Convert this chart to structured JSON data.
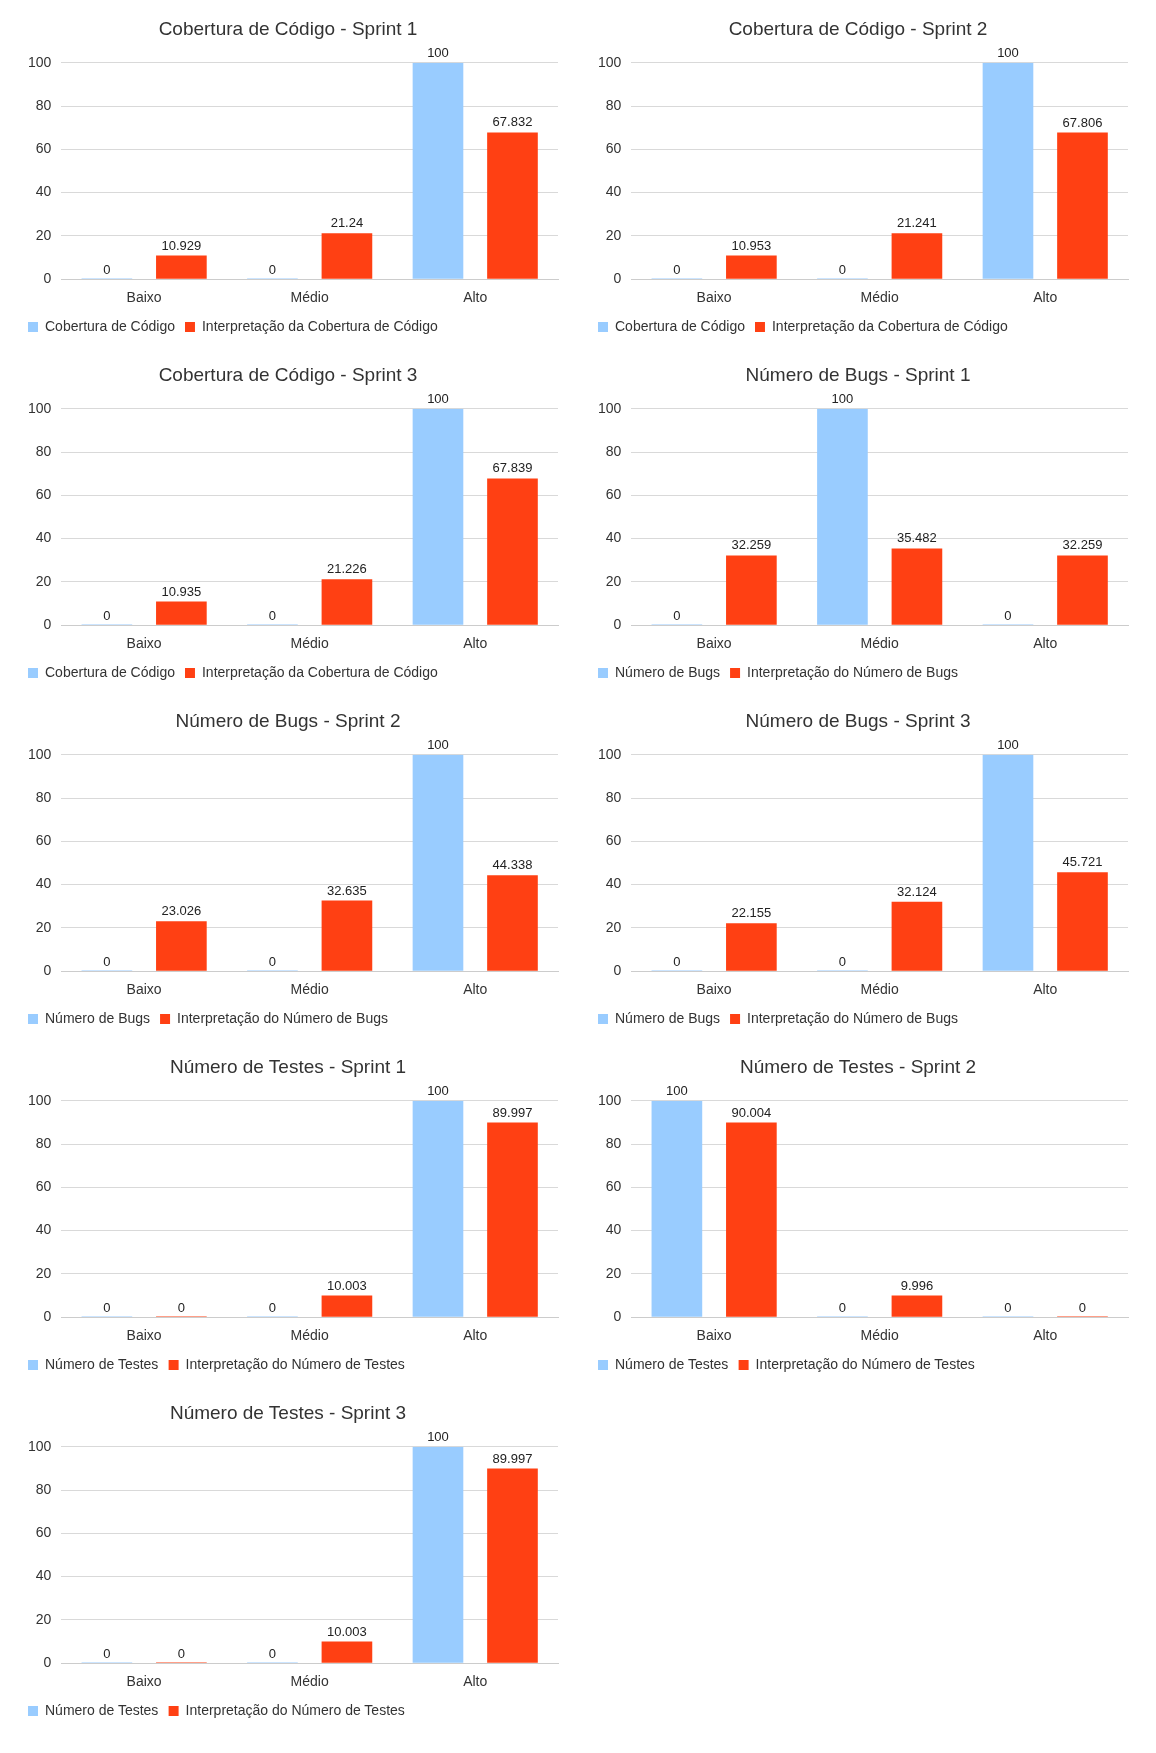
{
  "chart_data": [
    {
      "type": "bar",
      "title": "Cobertura de Código - Sprint 1",
      "categories": [
        "Baixo",
        "Médio",
        "Alto"
      ],
      "series": [
        {
          "name": "Cobertura de Código",
          "color": "#99ccff",
          "values": [
            0,
            0,
            100
          ]
        },
        {
          "name": "Interpretação da Cobertura de Código",
          "color": "#ff4013",
          "values": [
            10.929,
            21.24,
            67.832
          ]
        }
      ],
      "ylim": [
        0,
        100
      ],
      "yticks": [
        0,
        20,
        40,
        60,
        80,
        100
      ],
      "grid": "y",
      "legend": "bottom",
      "data_labels": true
    },
    {
      "type": "bar",
      "title": "Cobertura de Código - Sprint 2",
      "categories": [
        "Baixo",
        "Médio",
        "Alto"
      ],
      "series": [
        {
          "name": "Cobertura de Código",
          "color": "#99ccff",
          "values": [
            0,
            0,
            100
          ]
        },
        {
          "name": "Interpretação da Cobertura de Código",
          "color": "#ff4013",
          "values": [
            10.953,
            21.241,
            67.806
          ]
        }
      ],
      "ylim": [
        0,
        100
      ],
      "yticks": [
        0,
        20,
        40,
        60,
        80,
        100
      ],
      "grid": "y",
      "legend": "bottom",
      "data_labels": true
    },
    {
      "type": "bar",
      "title": "Cobertura de Código - Sprint 3",
      "categories": [
        "Baixo",
        "Médio",
        "Alto"
      ],
      "series": [
        {
          "name": "Cobertura de Código",
          "color": "#99ccff",
          "values": [
            0,
            0,
            100
          ]
        },
        {
          "name": "Interpretação da Cobertura de Código",
          "color": "#ff4013",
          "values": [
            10.935,
            21.226,
            67.839
          ]
        }
      ],
      "ylim": [
        0,
        100
      ],
      "yticks": [
        0,
        20,
        40,
        60,
        80,
        100
      ],
      "grid": "y",
      "legend": "bottom",
      "data_labels": true
    },
    {
      "type": "bar",
      "title": "Número de Bugs - Sprint 1",
      "categories": [
        "Baixo",
        "Médio",
        "Alto"
      ],
      "series": [
        {
          "name": "Número de Bugs",
          "color": "#99ccff",
          "values": [
            0,
            100,
            0
          ]
        },
        {
          "name": "Interpretação do Número de Bugs",
          "color": "#ff4013",
          "values": [
            32.259,
            35.482,
            32.259
          ]
        }
      ],
      "ylim": [
        0,
        100
      ],
      "yticks": [
        0,
        20,
        40,
        60,
        80,
        100
      ],
      "grid": "y",
      "legend": "bottom",
      "data_labels": true
    },
    {
      "type": "bar",
      "title": "Número de Bugs - Sprint 2",
      "categories": [
        "Baixo",
        "Médio",
        "Alto"
      ],
      "series": [
        {
          "name": "Número de Bugs",
          "color": "#99ccff",
          "values": [
            0,
            0,
            100
          ]
        },
        {
          "name": "Interpretação do Número de Bugs",
          "color": "#ff4013",
          "values": [
            23.026,
            32.635,
            44.338
          ]
        }
      ],
      "ylim": [
        0,
        100
      ],
      "yticks": [
        0,
        20,
        40,
        60,
        80,
        100
      ],
      "grid": "y",
      "legend": "bottom",
      "data_labels": true
    },
    {
      "type": "bar",
      "title": "Número de Bugs - Sprint 3",
      "categories": [
        "Baixo",
        "Médio",
        "Alto"
      ],
      "series": [
        {
          "name": "Número de Bugs",
          "color": "#99ccff",
          "values": [
            0,
            0,
            100
          ]
        },
        {
          "name": "Interpretação do Número de Bugs",
          "color": "#ff4013",
          "values": [
            22.155,
            32.124,
            45.721
          ]
        }
      ],
      "ylim": [
        0,
        100
      ],
      "yticks": [
        0,
        20,
        40,
        60,
        80,
        100
      ],
      "grid": "y",
      "legend": "bottom",
      "data_labels": true
    },
    {
      "type": "bar",
      "title": "Número de Testes - Sprint 1",
      "categories": [
        "Baixo",
        "Médio",
        "Alto"
      ],
      "series": [
        {
          "name": "Número de Testes",
          "color": "#99ccff",
          "values": [
            0,
            0,
            100
          ]
        },
        {
          "name": "Interpretação do Número de Testes",
          "color": "#ff4013",
          "values": [
            0,
            10.003,
            89.997
          ]
        }
      ],
      "ylim": [
        0,
        100
      ],
      "yticks": [
        0,
        20,
        40,
        60,
        80,
        100
      ],
      "grid": "y",
      "legend": "bottom",
      "data_labels": true
    },
    {
      "type": "bar",
      "title": "Número de Testes - Sprint 2",
      "categories": [
        "Baixo",
        "Médio",
        "Alto"
      ],
      "series": [
        {
          "name": "Número de Testes",
          "color": "#99ccff",
          "values": [
            100,
            0,
            0
          ]
        },
        {
          "name": "Interpretação do Número de Testes",
          "color": "#ff4013",
          "values": [
            90.004,
            9.996,
            0
          ]
        }
      ],
      "ylim": [
        0,
        100
      ],
      "yticks": [
        0,
        20,
        40,
        60,
        80,
        100
      ],
      "grid": "y",
      "legend": "bottom",
      "data_labels": true
    },
    {
      "type": "bar",
      "title": "Número de Testes - Sprint 3",
      "categories": [
        "Baixo",
        "Médio",
        "Alto"
      ],
      "series": [
        {
          "name": "Número de Testes",
          "color": "#99ccff",
          "values": [
            0,
            0,
            100
          ]
        },
        {
          "name": "Interpretação do Número de Testes",
          "color": "#ff4013",
          "values": [
            0,
            10.003,
            89.997
          ]
        }
      ],
      "ylim": [
        0,
        100
      ],
      "yticks": [
        0,
        20,
        40,
        60,
        80,
        100
      ],
      "grid": "y",
      "legend": "bottom",
      "data_labels": true
    }
  ]
}
